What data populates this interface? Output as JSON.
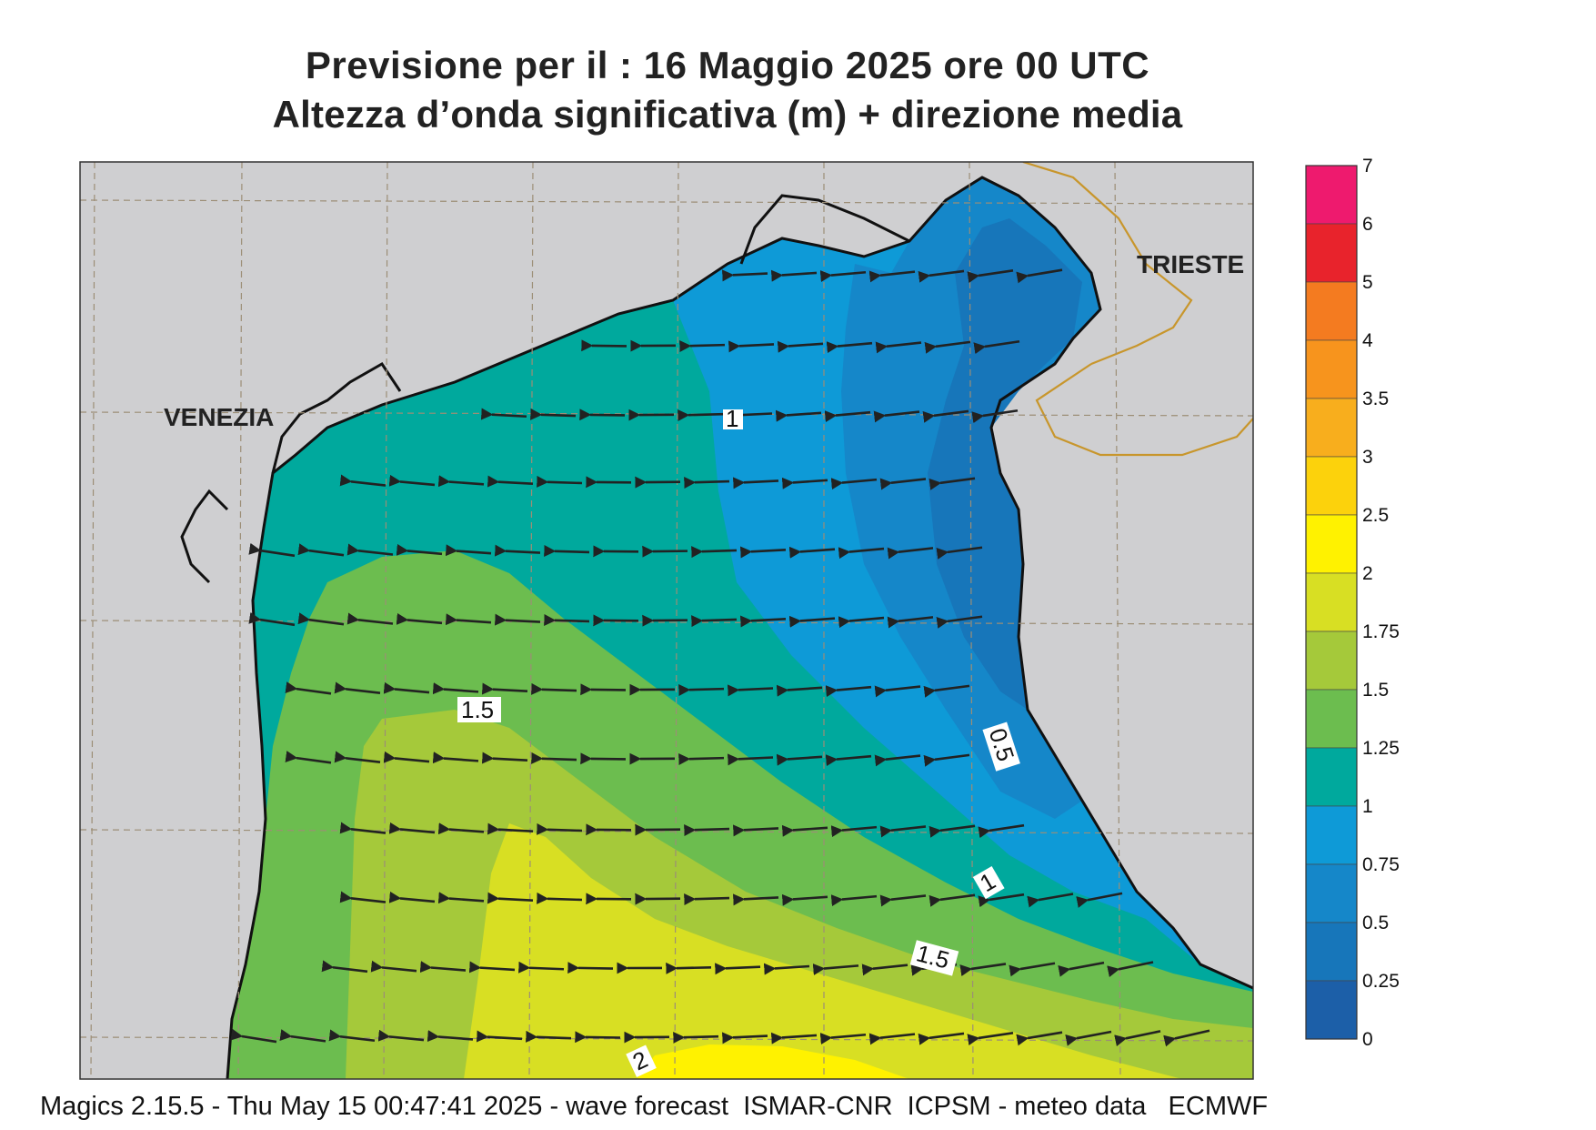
{
  "header": {
    "line1": "Previsione per il  :  16   Maggio  2025   ore 00 UTC",
    "line2": "Altezza d’onda significativa (m) + direzione media"
  },
  "footer": "Magics 2.15.5 - Thu May 15 00:47:41 2025 - wave forecast  ISMAR-CNR  ICPSM - meteo data   ECMWF",
  "map": {
    "cities": [
      {
        "name": "VENEZIA"
      },
      {
        "name": "TRIESTE"
      }
    ],
    "contour_labels": [
      "1",
      "1.5",
      "0.5",
      "1",
      "1.5",
      "2"
    ],
    "land_color": "#cfcfd1",
    "coast_color": "#111111",
    "border_color": "#c8962c",
    "grid_color": "#9c8e76",
    "arrow_direction": "west"
  },
  "colorbar": {
    "ticks": [
      "7",
      "6",
      "5",
      "4",
      "3.5",
      "3",
      "2.5",
      "2",
      "1.75",
      "1.5",
      "1.25",
      "1",
      "0.75",
      "0.5",
      "0.25",
      "0"
    ],
    "colors": [
      "#ee1a6e",
      "#e8232c",
      "#f47b20",
      "#f7941d",
      "#f8ae1d",
      "#fcd20c",
      "#fff200",
      "#d8df23",
      "#a5c93a",
      "#6cbd4f",
      "#00a99d",
      "#0e9ad7",
      "#1587c9",
      "#1776ba",
      "#1c5fa8"
    ]
  }
}
